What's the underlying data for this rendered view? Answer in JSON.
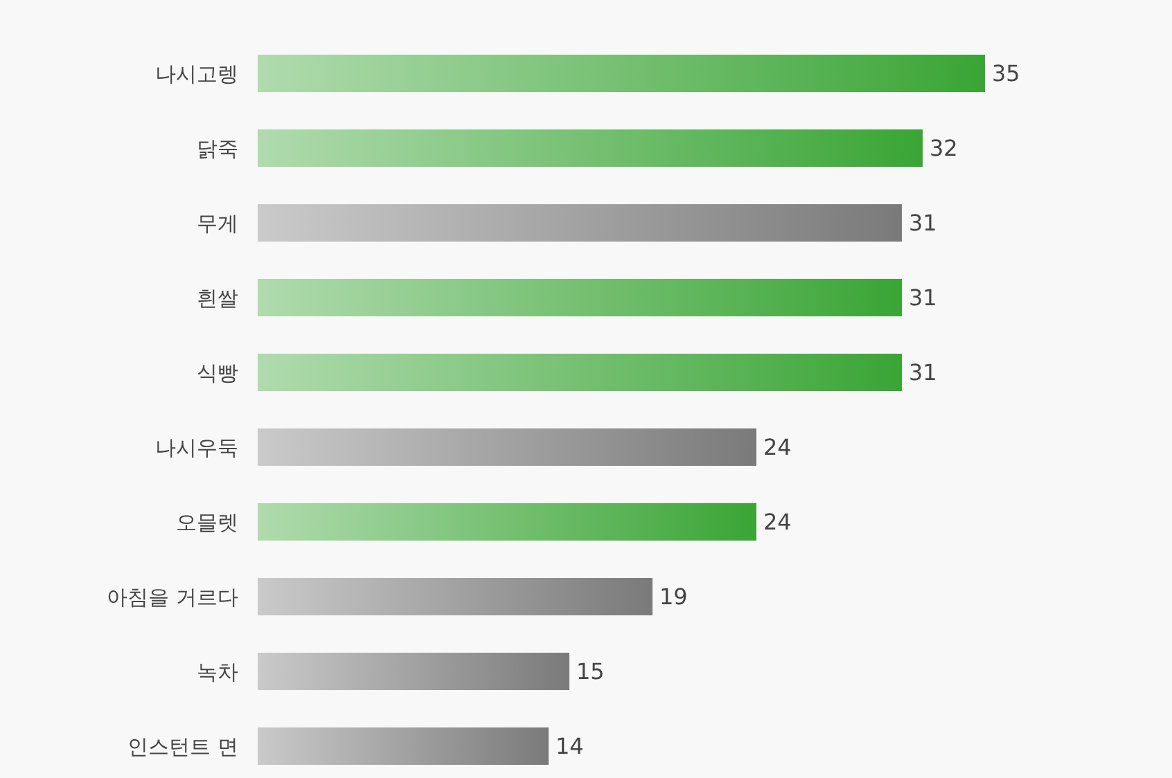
{
  "chart_data": {
    "type": "bar",
    "orientation": "horizontal",
    "data_labels": true,
    "categories": [
      "나시고렝",
      "닭죽",
      "무게",
      "흰쌀",
      "식빵",
      "나시우둑",
      "오믈렛",
      "아침을 거르다",
      "녹차",
      "인스턴트 면"
    ],
    "values": [
      35,
      32,
      31,
      31,
      31,
      24,
      24,
      19,
      15,
      14
    ],
    "colors": [
      "#3aa535",
      "#3aa535",
      "#7a7a7a",
      "#3aa535",
      "#3aa535",
      "#7a7a7a",
      "#3aa535",
      "#7a7a7a",
      "#7a7a7a",
      "#7a7a7a"
    ]
  }
}
